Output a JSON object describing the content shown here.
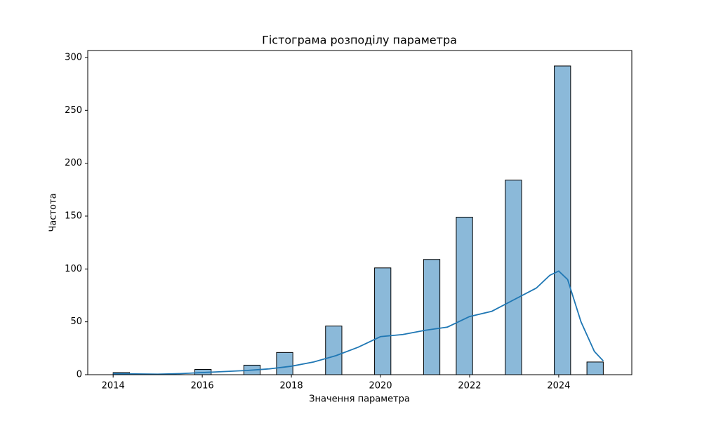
{
  "chart_data": {
    "type": "histogram",
    "title": "Гістограма розподілу параметра",
    "x_label": "Значення параметра",
    "y_label": "Частота",
    "bins": [
      2014,
      2014.367,
      2014.733,
      2015.1,
      2015.467,
      2015.833,
      2016.2,
      2016.567,
      2016.933,
      2017.3,
      2017.667,
      2018.033,
      2018.4,
      2018.767,
      2019.133,
      2019.5,
      2019.867,
      2020.233,
      2020.6,
      2020.967,
      2021.333,
      2021.7,
      2022.067,
      2022.433,
      2022.8,
      2023.167,
      2023.533,
      2023.9,
      2024.267,
      2024.633,
      2025
    ],
    "counts": [
      2,
      0,
      0,
      0,
      0,
      5,
      0,
      0,
      9,
      0,
      21,
      0,
      0,
      46,
      0,
      0,
      101,
      0,
      0,
      109,
      0,
      149,
      0,
      0,
      184,
      0,
      0,
      292,
      0,
      12
    ],
    "color": "#8bb9d9",
    "edge_color": "#000000",
    "kde": {
      "color": "#1f77b4",
      "x": [
        2014,
        2014.5,
        2015,
        2015.5,
        2016,
        2016.5,
        2017,
        2017.5,
        2018,
        2018.5,
        2019,
        2019.5,
        2020,
        2020.5,
        2021,
        2021.5,
        2022,
        2022.5,
        2023,
        2023.5,
        2023.8,
        2024,
        2024.2,
        2024.5,
        2024.8,
        2025
      ],
      "values": [
        1,
        0.7,
        0.5,
        1,
        2,
        3,
        4,
        5.5,
        8,
        12,
        18,
        26,
        36,
        38,
        42,
        45,
        55,
        60,
        71,
        82,
        94,
        98,
        90,
        50,
        22,
        13
      ]
    },
    "xlim": [
      2013.43,
      2025.64
    ],
    "ylim": [
      0,
      306.6
    ],
    "xticks": [
      2014,
      2016,
      2018,
      2020,
      2022,
      2024
    ],
    "yticks": [
      0,
      50,
      100,
      150,
      200,
      250,
      300
    ]
  }
}
